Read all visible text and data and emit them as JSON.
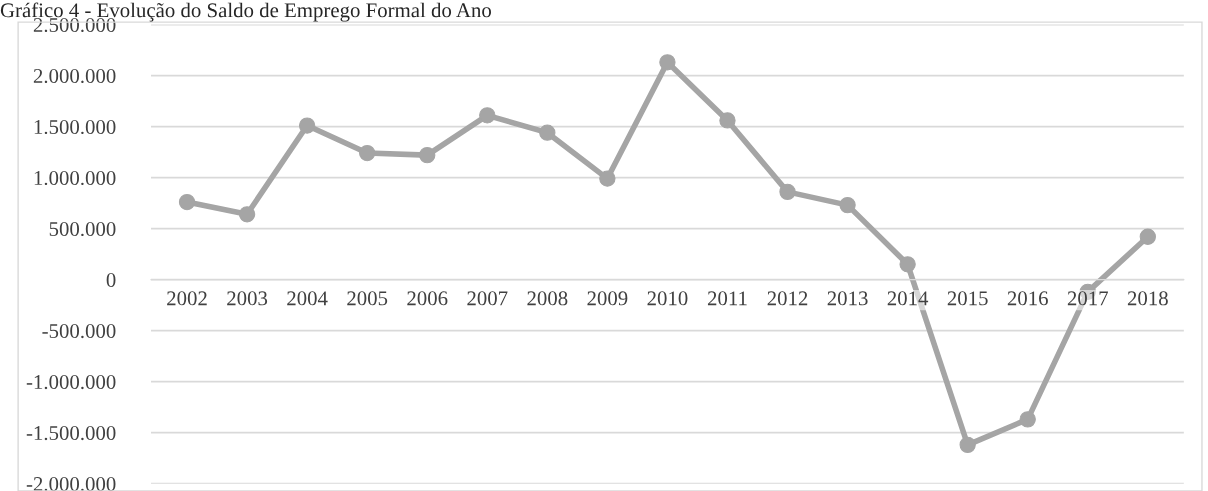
{
  "chart_data": {
    "type": "line",
    "title": "Gráfico 4 - Evolução do Saldo de Emprego Formal do Ano",
    "categories": [
      "2002",
      "2003",
      "2004",
      "2005",
      "2006",
      "2007",
      "2008",
      "2009",
      "2010",
      "2011",
      "2012",
      "2013",
      "2014",
      "2015",
      "2016",
      "2017",
      "2018"
    ],
    "series": [
      {
        "color": "#a5a5a5",
        "values": [
          760000,
          640000,
          1510000,
          1240000,
          1220000,
          1610000,
          1440000,
          990000,
          2130000,
          1560000,
          860000,
          730000,
          150000,
          -1620000,
          -1370000,
          -120000,
          420000
        ]
      }
    ],
    "ylim": [
      -2000000,
      2500000
    ],
    "yticks": [
      {
        "value": -2000000,
        "label": "-2.000.000"
      },
      {
        "value": -1500000,
        "label": "-1.500.000"
      },
      {
        "value": -1000000,
        "label": "-1.000.000"
      },
      {
        "value": -500000,
        "label": "-500.000"
      },
      {
        "value": 0,
        "label": "0"
      },
      {
        "value": 500000,
        "label": "500.000"
      },
      {
        "value": 1000000,
        "label": "1.000.000"
      },
      {
        "value": 1500000,
        "label": "1.500.000"
      },
      {
        "value": 2000000,
        "label": "2.000.000"
      },
      {
        "value": 2500000,
        "label": "2.500.000"
      }
    ],
    "grid": "y",
    "marker": "circle",
    "line_style": "solid",
    "legend": false
  }
}
